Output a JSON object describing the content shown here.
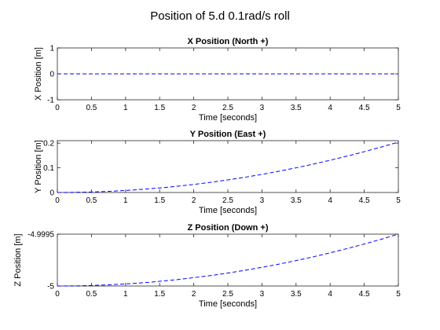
{
  "figure": {
    "title": "Position of 5.d 0.1rad/s roll",
    "line_color": "#0000ff"
  },
  "chart_data": [
    {
      "type": "line",
      "title": "X Position (North +)",
      "xlabel": "Time [seconds]",
      "ylabel": "X Position [m]",
      "xlim": [
        0,
        5
      ],
      "ylim": [
        -1,
        1
      ],
      "xticks": [
        0,
        0.5,
        1,
        1.5,
        2,
        2.5,
        3,
        3.5,
        4,
        4.5,
        5
      ],
      "yticks": [
        -1,
        0,
        1
      ],
      "xtick_labels": [
        "0",
        "0.5",
        "1",
        "1.5",
        "2",
        "2.5",
        "3",
        "3.5",
        "4",
        "4.5",
        "5"
      ],
      "ytick_labels": [
        "-1",
        "0",
        "1"
      ],
      "line_style": "dashed",
      "series": [
        {
          "x": [
            0,
            0.5,
            1,
            1.5,
            2,
            2.5,
            3,
            3.5,
            4,
            4.5,
            5
          ],
          "y": [
            0,
            0,
            0,
            0,
            0,
            0,
            0,
            0,
            0,
            0,
            0
          ]
        }
      ]
    },
    {
      "type": "line",
      "title": "Y Position (East +)",
      "xlabel": "Time [seconds]",
      "ylabel": "Y Position [m]",
      "xlim": [
        0,
        5
      ],
      "ylim": [
        0,
        0.21
      ],
      "xticks": [
        0,
        0.5,
        1,
        1.5,
        2,
        2.5,
        3,
        3.5,
        4,
        4.5,
        5
      ],
      "yticks": [
        0,
        0.1,
        0.2
      ],
      "xtick_labels": [
        "0",
        "0.5",
        "1",
        "1.5",
        "2",
        "2.5",
        "3",
        "3.5",
        "4",
        "4.5",
        "5"
      ],
      "ytick_labels": [
        "0",
        "0.1",
        "0.2"
      ],
      "line_style": "dashed",
      "series": [
        {
          "x": [
            0,
            0.25,
            0.5,
            0.75,
            1,
            1.25,
            1.5,
            1.75,
            2,
            2.25,
            2.5,
            2.75,
            3,
            3.25,
            3.5,
            3.75,
            4,
            4.25,
            4.5,
            4.75,
            5
          ],
          "y": [
            0,
            0.0005,
            0.002,
            0.0046,
            0.0082,
            0.0128,
            0.0184,
            0.025,
            0.0327,
            0.0413,
            0.051,
            0.0617,
            0.0734,
            0.0862,
            0.1,
            0.1148,
            0.1306,
            0.1474,
            0.1653,
            0.1842,
            0.2041
          ]
        }
      ]
    },
    {
      "type": "line",
      "title": "Z Position (Down +)",
      "xlabel": "Time [seconds]",
      "ylabel": "Z Position [m]",
      "xlim": [
        0,
        5
      ],
      "ylim": [
        -5,
        -4.9995
      ],
      "xticks": [
        0,
        0.5,
        1,
        1.5,
        2,
        2.5,
        3,
        3.5,
        4,
        4.5,
        5
      ],
      "yticks": [
        -5,
        -4.9995
      ],
      "xtick_labels": [
        "0",
        "0.5",
        "1",
        "1.5",
        "2",
        "2.5",
        "3",
        "3.5",
        "4",
        "4.5",
        "5"
      ],
      "ytick_labels": [
        "-5",
        "-4.9995"
      ],
      "line_style": "dashed",
      "series": [
        {
          "x": [
            0,
            0.25,
            0.5,
            0.75,
            1,
            1.25,
            1.5,
            1.75,
            2,
            2.25,
            2.5,
            2.75,
            3,
            3.25,
            3.5,
            3.75,
            4,
            4.25,
            4.5,
            4.75,
            5
          ],
          "y": [
            -5,
            -4.999999,
            -4.999995,
            -4.999989,
            -4.99998,
            -4.999969,
            -4.999955,
            -4.999939,
            -4.99992,
            -4.999899,
            -4.999875,
            -4.999849,
            -4.99982,
            -4.999789,
            -4.999755,
            -4.999719,
            -4.99968,
            -4.999639,
            -4.999595,
            -4.999549,
            -4.9995
          ]
        }
      ]
    }
  ]
}
